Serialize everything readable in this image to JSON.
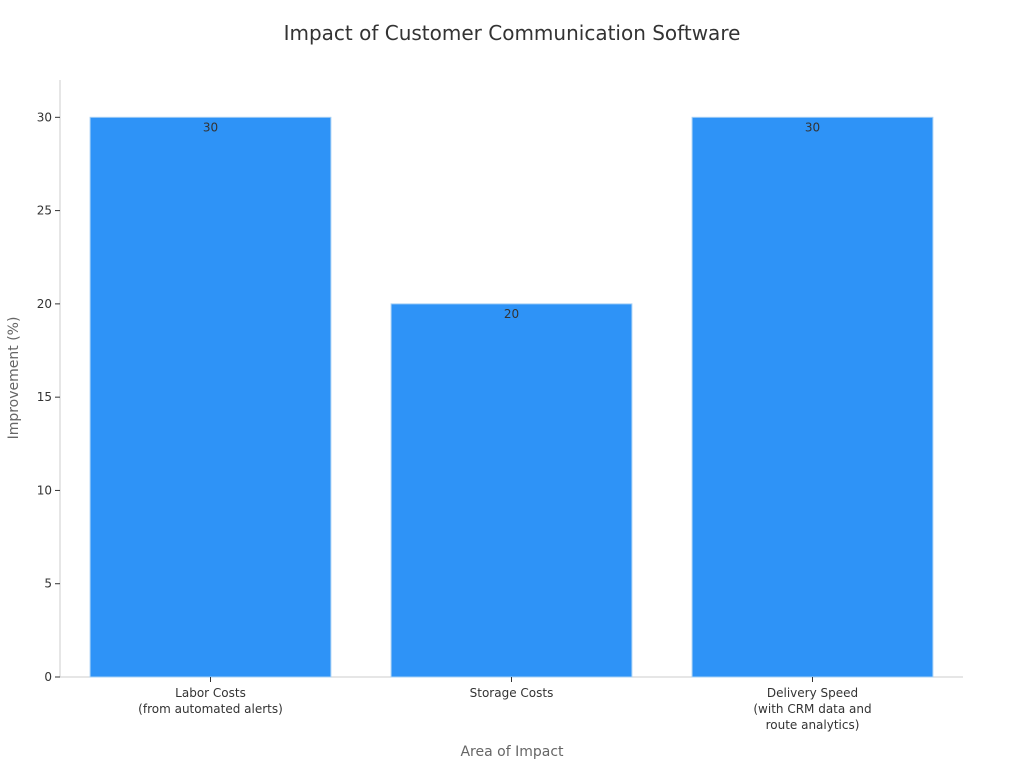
{
  "chart_data": {
    "type": "bar",
    "title": "Impact of Customer Communication Software",
    "xlabel": "Area of Impact",
    "ylabel": "Improvement (%)",
    "categories": [
      [
        "Labor Costs",
        "(from automated alerts)"
      ],
      [
        "Storage Costs"
      ],
      [
        "Delivery Speed",
        "(with CRM data and",
        "route analytics)"
      ]
    ],
    "values": [
      30,
      20,
      30
    ],
    "data_labels": [
      "30",
      "20",
      "30"
    ],
    "ylim": [
      0,
      32
    ],
    "yticks": [
      0,
      5,
      10,
      15,
      20,
      25,
      30
    ],
    "grid": false,
    "legend": "none",
    "colors": {
      "bar": "#2e93f7",
      "bar_edge": "#a7d0f5",
      "axis": "#cccccc",
      "tick": "#333333"
    }
  }
}
